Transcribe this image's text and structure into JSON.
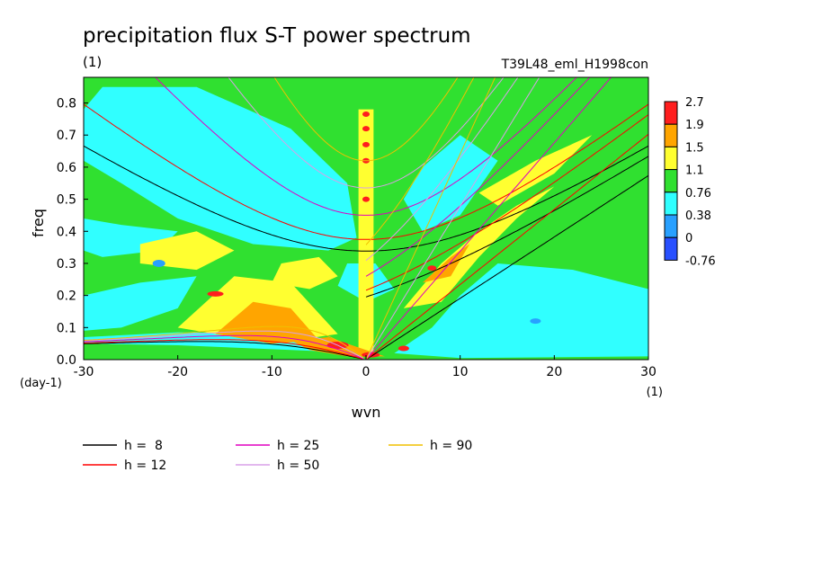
{
  "chart_data": {
    "type": "heatmap",
    "title": "precipitation flux S-T power spectrum",
    "subtitle_left": "(1)",
    "subtitle_right": "T39L48_eml_H1998con",
    "xlabel": "wvn",
    "ylabel": "freq",
    "x_unit": "(1)",
    "y_unit": "(day-1)",
    "xlim": [
      -30,
      30
    ],
    "ylim": [
      0,
      0.88
    ],
    "xticks": [
      -30,
      -20,
      -10,
      0,
      10,
      20,
      30
    ],
    "yticks": [
      0.0,
      0.1,
      0.2,
      0.3,
      0.4,
      0.5,
      0.6,
      0.7,
      0.8
    ],
    "colorbar": {
      "levels": [
        "2.7",
        "1.9",
        "1.5",
        "1.1",
        "0.76",
        "0.38",
        "0",
        "-0.76"
      ],
      "colors": [
        "#ff1e1e",
        "#ffa500",
        "#ffff30",
        "#30e030",
        "#30ffff",
        "#28a0ff",
        "#2850ff"
      ]
    },
    "legend": [
      {
        "label": "h =  8",
        "color": "#000000"
      },
      {
        "label": "h = 12",
        "color": "#ff0000"
      },
      {
        "label": "h = 25",
        "color": "#e000c0"
      },
      {
        "label": "h = 50",
        "color": "#d8a0e8"
      },
      {
        "label": "h = 90",
        "color": "#f0c000"
      }
    ]
  }
}
